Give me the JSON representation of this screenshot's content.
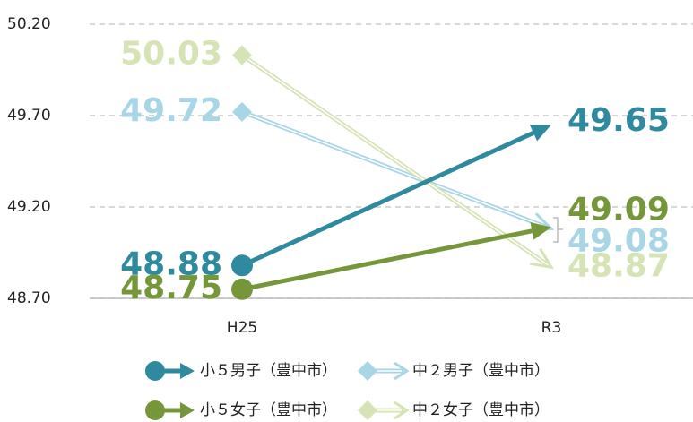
{
  "chart_data": {
    "type": "line",
    "categories": [
      "H25",
      "R3"
    ],
    "series": [
      {
        "name": "中２男子（豊中市）",
        "color": "#a9d6e6",
        "marker": "diamond",
        "values": [
          49.72,
          49.08
        ]
      },
      {
        "name": "中２女子（豊中市）",
        "color": "#d5e3b5",
        "marker": "diamond",
        "values": [
          50.03,
          48.87
        ]
      },
      {
        "name": "小５男子（豊中市）",
        "color": "#2f8aa0",
        "marker": "circle",
        "values": [
          48.88,
          49.65
        ]
      },
      {
        "name": "小５女子（豊中市）",
        "color": "#76963a",
        "marker": "circle",
        "values": [
          48.75,
          49.09
        ]
      }
    ],
    "ylim": [
      48.7,
      50.2
    ],
    "yticks": [
      {
        "value": 48.7,
        "label": "48.70"
      },
      {
        "value": 49.2,
        "label": "49.20"
      },
      {
        "value": 49.7,
        "label": "49.70"
      },
      {
        "value": 50.2,
        "label": "50.20"
      }
    ],
    "grid": true
  }
}
